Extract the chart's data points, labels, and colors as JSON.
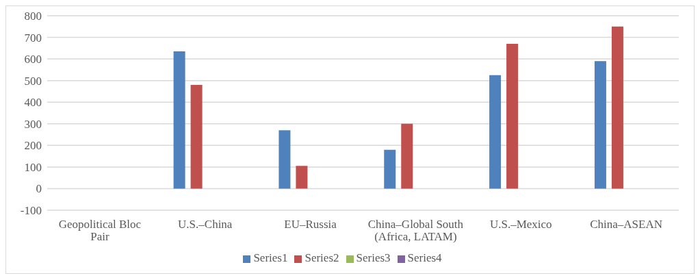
{
  "chart_data": {
    "type": "bar",
    "categories": [
      "Geopolitical Bloc Pair",
      "U.S.–China",
      "EU–Russia",
      "China–Global South (Africa, LATAM)",
      "U.S.–Mexico",
      "China–ASEAN"
    ],
    "series": [
      {
        "name": "Series1",
        "color": "#4f81bd",
        "values": [
          null,
          635,
          270,
          180,
          525,
          590
        ]
      },
      {
        "name": "Series2",
        "color": "#c0504d",
        "values": [
          null,
          480,
          105,
          300,
          670,
          750
        ]
      },
      {
        "name": "Series3",
        "color": "#9bbb59",
        "values": [
          null,
          null,
          null,
          null,
          null,
          null
        ]
      },
      {
        "name": "Series4",
        "color": "#8064a2",
        "values": [
          null,
          null,
          null,
          null,
          null,
          null
        ]
      }
    ],
    "ylim": [
      -100,
      800
    ],
    "yticks": [
      -100,
      0,
      100,
      200,
      300,
      400,
      500,
      600,
      700,
      800
    ],
    "grid": "y",
    "legend": "bottom"
  }
}
